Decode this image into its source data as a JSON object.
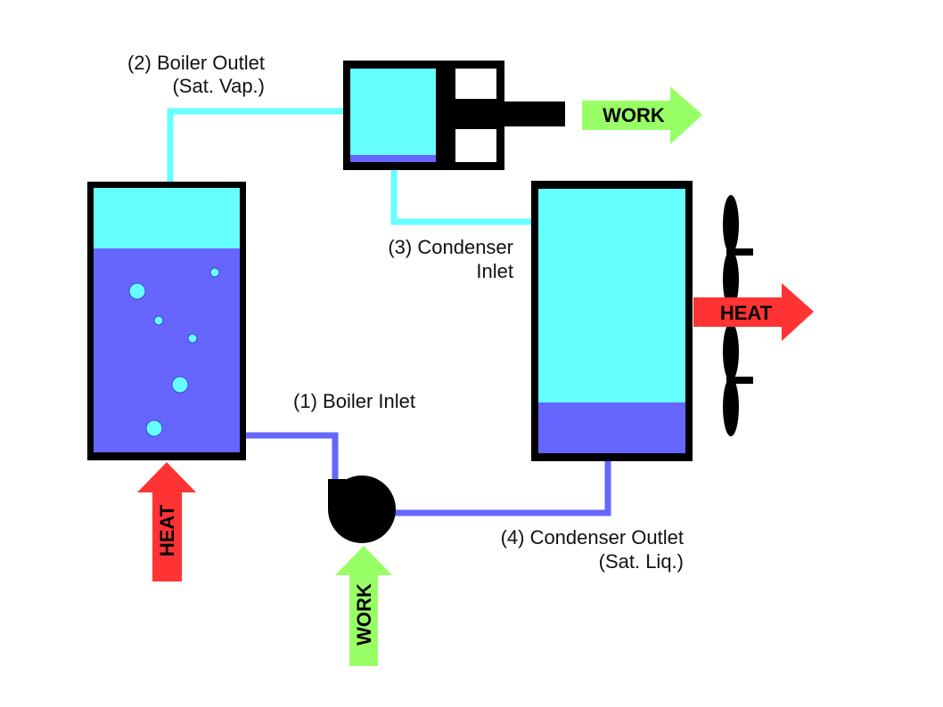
{
  "labels": {
    "boiler_outlet_line1": "(2) Boiler Outlet",
    "boiler_outlet_line2": "(Sat. Vap.)",
    "condenser_inlet_line1": "(3) Condenser",
    "condenser_inlet_line2": "Inlet",
    "boiler_inlet": "(1) Boiler Inlet",
    "condenser_outlet_line1": "(4) Condenser Outlet",
    "condenser_outlet_line2": "(Sat. Liq.)"
  },
  "arrows": {
    "turbine_work": "WORK",
    "condenser_heat": "HEAT",
    "boiler_heat": "HEAT",
    "pump_work": "WORK"
  },
  "colors": {
    "vapor": "#66ffff",
    "liquid": "#6666ff",
    "heat_arrow": "#ff3333",
    "work_arrow": "#99ff66",
    "outline": "#000000"
  }
}
